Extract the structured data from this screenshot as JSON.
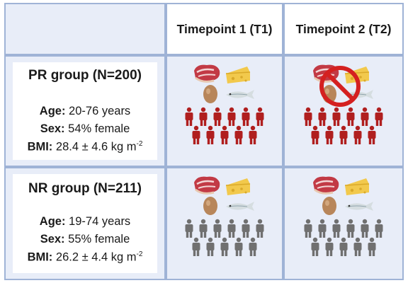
{
  "headers": {
    "t1": "Timepoint 1 (T1)",
    "t2": "Timepoint 2 (T2)"
  },
  "groups": [
    {
      "title": "PR group (N=200)",
      "age_label": "Age:",
      "age_value": " 20-76 years",
      "sex_label": "Sex:",
      "sex_value": " 54% female",
      "bmi_label": "BMI:",
      "bmi_value": " 28.4 ± 4.6 kg m",
      "bmi_exp": "-2",
      "people_color": "#b01f1f"
    },
    {
      "title": "NR group (N=211)",
      "age_label": "Age:",
      "age_value": " 19-74 years",
      "sex_label": "Sex:",
      "sex_value": " 55% female",
      "bmi_label": "BMI:",
      "bmi_value": " 26.2 ± 4.4 kg m",
      "bmi_exp": "-2",
      "people_color": "#707070"
    }
  ],
  "icons": {
    "food": [
      "steak-icon",
      "cheese-icon",
      "egg-icon",
      "fish-icon"
    ],
    "prohibited": "prohibited-sign-icon",
    "person": "person-icon"
  },
  "colors": {
    "border": "#9fb3d6",
    "panel_bg": "#e8edf8",
    "prohibit_red": "#d42020"
  }
}
